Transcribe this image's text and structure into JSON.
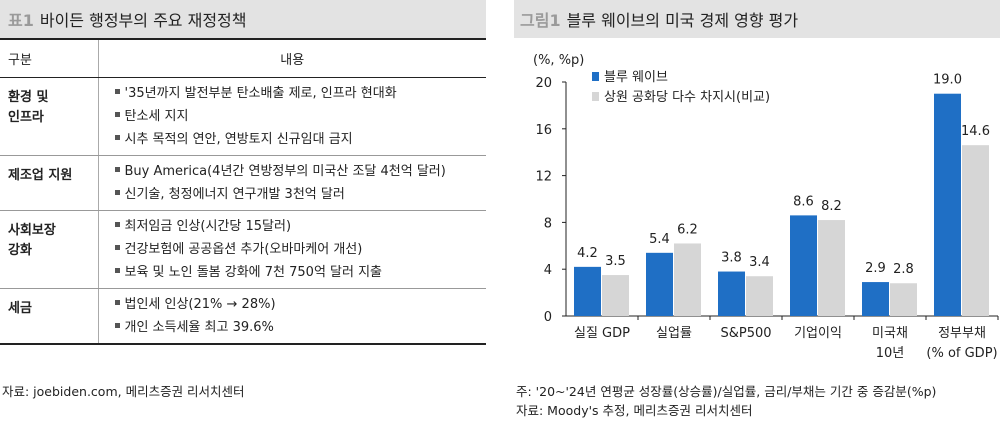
{
  "left": {
    "tag": "표1",
    "title": "바이든 행정부의 주요 재정정책",
    "col_category": "구분",
    "col_content": "내용",
    "rows": [
      {
        "category": [
          "환경 및",
          "인프라"
        ],
        "items": [
          "'35년까지 발전부분 탄소배출 제로, 인프라 현대화",
          "탄소세 지지",
          "시추 목적의 연안, 연방토지 신규임대 금지"
        ]
      },
      {
        "category": [
          "제조업 지원"
        ],
        "items": [
          "Buy America(4년간 연방정부의 미국산 조달 4천억 달러)",
          "신기술, 청정에너지 연구개발 3천억 달러"
        ]
      },
      {
        "category": [
          "사회보장",
          "강화"
        ],
        "items": [
          "최저임금 인상(시간당 15달러)",
          "건강보험에 공공옵션 추가(오바마케어 개선)",
          "보육 및 노인 돌봄 강화에 7천 750억 달러 지출"
        ]
      },
      {
        "category": [
          "세금"
        ],
        "items": [
          "법인세 인상(21% → 28%)",
          "개인 소득세율 최고 39.6%"
        ]
      }
    ],
    "source": "자료: joebiden.com, 메리츠증권 리서치센터"
  },
  "right": {
    "tag": "그림1",
    "title": "블루 웨이브의 미국 경제 영향 평가",
    "note": "주: '20~'24년 연평균 성장률(상승률)/실업률, 금리/부채는 기간 중 증감분(%p)",
    "source": "자료: Moody's 추정, 메리츠증권 리서치센터"
  },
  "chart_data": {
    "type": "bar",
    "unit_label": "(%, %p)",
    "categories": [
      [
        "실질 GDP"
      ],
      [
        "실업률"
      ],
      [
        "S&P500"
      ],
      [
        "기업이익"
      ],
      [
        "미국채",
        "10년"
      ],
      [
        "정부부채",
        "(% of GDP)"
      ]
    ],
    "series": [
      {
        "name": "블루 웨이브",
        "color": "#1f6fc5",
        "values": [
          4.2,
          5.4,
          3.8,
          8.6,
          2.9,
          19.0
        ],
        "labels": [
          "4.2",
          "5.4",
          "3.8",
          "8.6",
          "2.9",
          "19.0"
        ]
      },
      {
        "name": "상원 공화당 다수 차지시(비교)",
        "color": "#d6d6d6",
        "values": [
          3.5,
          6.2,
          3.4,
          8.2,
          2.8,
          14.6
        ],
        "labels": [
          "3.5",
          "6.2",
          "3.4",
          "8.2",
          "2.8",
          "14.6"
        ]
      }
    ],
    "ylim": [
      0,
      20
    ],
    "yticks": [
      "0",
      "4",
      "8",
      "12",
      "16",
      "20"
    ],
    "legend_position": "top-left",
    "grid": false
  }
}
